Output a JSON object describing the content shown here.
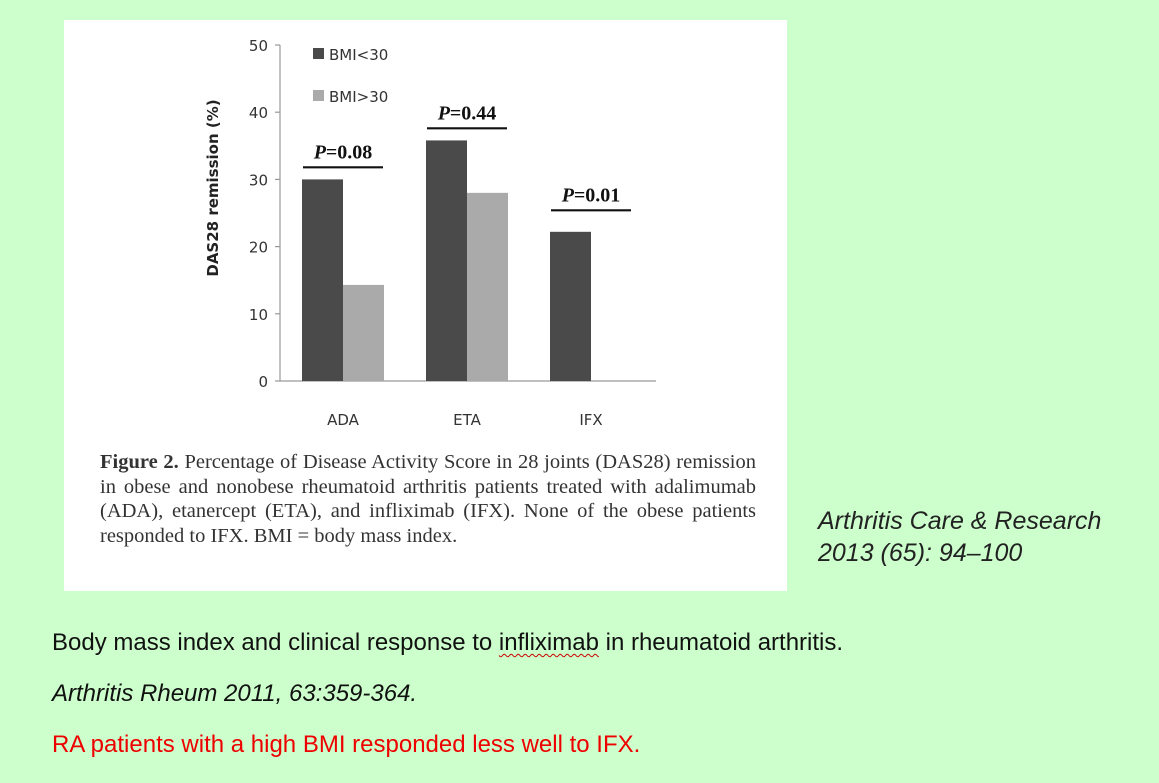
{
  "chart_data": {
    "type": "bar",
    "ylabel": "DAS28 remission (%)",
    "xlabel": "",
    "ylim": [
      0,
      50
    ],
    "yticks": [
      "0",
      "10",
      "20",
      "30",
      "40",
      "50"
    ],
    "categories": [
      "ADA",
      "ETA",
      "IFX"
    ],
    "series": [
      {
        "name": "BMI<30",
        "values": [
          30,
          35.8,
          22.2
        ],
        "color": "#4a4a4a"
      },
      {
        "name": "BMI>30",
        "values": [
          14.3,
          28,
          0
        ],
        "color": "#aaaaaa"
      }
    ],
    "legend": "top-left",
    "annotations": [
      {
        "category": "ADA",
        "label": "P=0.08",
        "level": 31.8
      },
      {
        "category": "ETA",
        "label": "P=0.44",
        "level": 37.6
      },
      {
        "category": "IFX",
        "label": "P=0.01",
        "level": 25.4
      }
    ]
  },
  "caption": {
    "label": "Figure 2.",
    "text": "Percentage of Disease Activity Score in 28 joints (DAS28) remission in obese and nonobese rheumatoid arthritis patients treated with adalimumab (ADA), etanercept (ETA), and infliximab (IFX). None of the obese patients responded to IFX. BMI = body mass index."
  },
  "citation": {
    "line1": "Arthritis Care & Research",
    "line2": "2013 (65): 94–100"
  },
  "notes": {
    "title_before": "Body mass index and clinical response to ",
    "title_term": "infliximab",
    "title_after": " in rheumatoid arthritis.",
    "journal": "Arthritis Rheum 2011, 63:359-364.",
    "conclusion": "RA patients with a high BMI responded less well to IFX."
  },
  "colors": {
    "background": "#ccffcc",
    "conclusion_text": "#ee0000"
  }
}
